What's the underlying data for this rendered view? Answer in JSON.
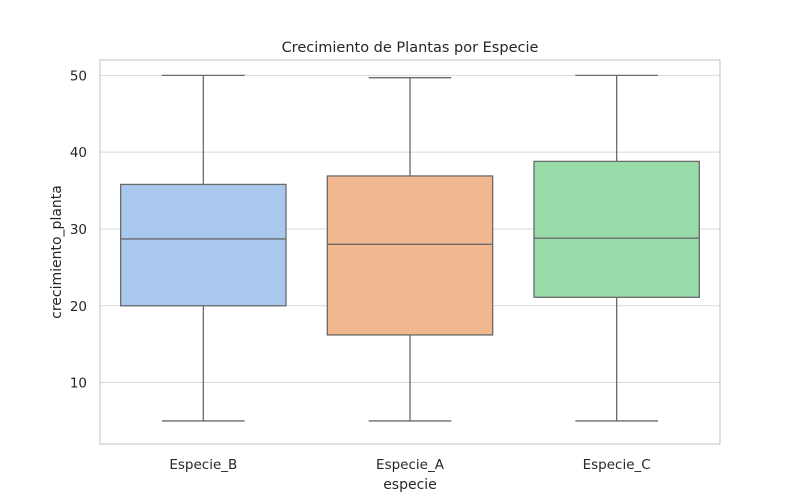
{
  "chart_data": {
    "type": "box",
    "title": "Crecimiento de Plantas por Especie",
    "xlabel": "especie",
    "ylabel": "crecimiento_planta",
    "ylim": [
      2,
      52
    ],
    "yticks": [
      10,
      20,
      30,
      40,
      50
    ],
    "grid": "horizontal",
    "colors": {
      "grid": "#d9d9d9",
      "frame": "#cccccc",
      "stroke": "#6a6a6a"
    },
    "categories": [
      "Especie_B",
      "Especie_A",
      "Especie_C"
    ],
    "boxes": [
      {
        "category": "Especie_B",
        "min": 5.0,
        "q1": 20.0,
        "median": 28.7,
        "q3": 35.8,
        "max": 50.0,
        "color": "#a8c8ee"
      },
      {
        "category": "Especie_A",
        "min": 5.0,
        "q1": 16.2,
        "median": 28.0,
        "q3": 36.9,
        "max": 49.7,
        "color": "#f1b78e"
      },
      {
        "category": "Especie_C",
        "min": 5.0,
        "q1": 21.1,
        "median": 28.8,
        "q3": 38.8,
        "max": 50.0,
        "color": "#98dba8"
      }
    ]
  }
}
